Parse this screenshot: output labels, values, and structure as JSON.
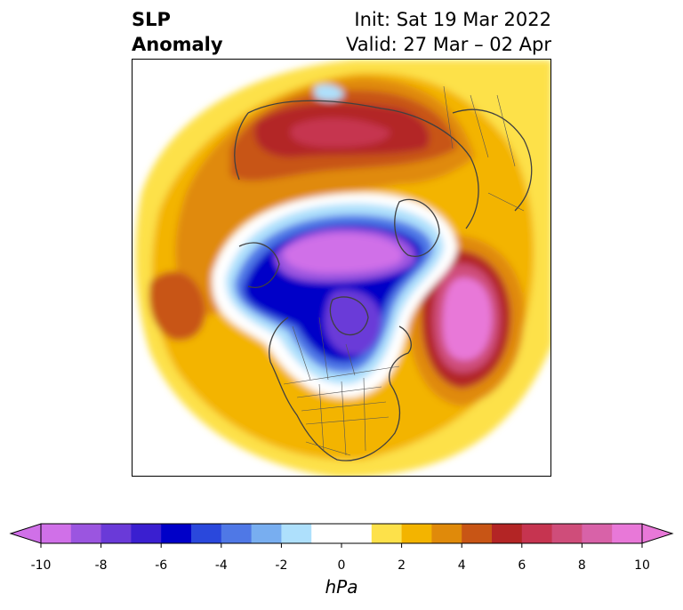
{
  "title": {
    "left_line1": "SLP",
    "left_line2": "Anomaly",
    "init": "Init: Sat 19 Mar 2022",
    "valid": "Valid: 27 Mar – 02 Apr"
  },
  "colorbar": {
    "label": "hPa",
    "ticks": [
      "-10",
      "-8",
      "-6",
      "-4",
      "-2",
      "0",
      "2",
      "4",
      "6",
      "8",
      "10"
    ],
    "min": -10,
    "max": 10,
    "extend": "both",
    "colors": [
      "#d070e8",
      "#9b55e0",
      "#6a3ad8",
      "#3a1fd0",
      "#0000c8",
      "#2a48dc",
      "#4f78e6",
      "#78aef0",
      "#aee0fc",
      "#ffffff",
      "#ffffff",
      "#fde14a",
      "#f3b400",
      "#e08a0a",
      "#c85515",
      "#b32525",
      "#c63450",
      "#cf4d7a",
      "#d862a8",
      "#e878d8"
    ]
  },
  "map": {
    "projection": "north-polar-stereographic",
    "field": "sea-level-pressure-anomaly",
    "features": [
      "coastlines",
      "country-borders",
      "us-state-borders",
      "canada-province-borders"
    ]
  }
}
